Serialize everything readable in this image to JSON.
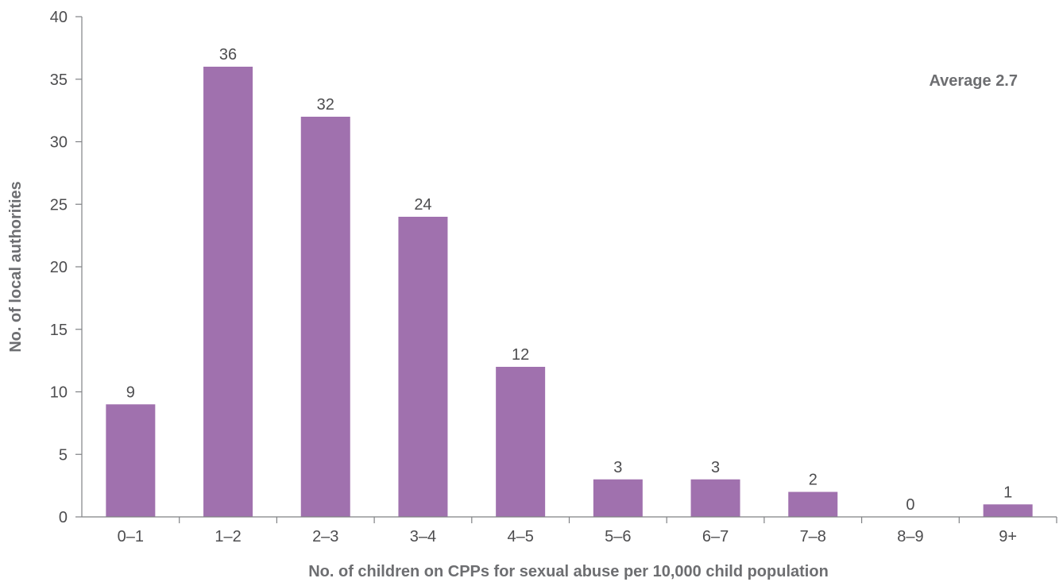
{
  "chart_data": {
    "type": "bar",
    "categories": [
      "0–1",
      "1–2",
      "2–3",
      "3–4",
      "4–5",
      "5–6",
      "6–7",
      "7–8",
      "8–9",
      "9+"
    ],
    "values": [
      9,
      36,
      32,
      24,
      12,
      3,
      3,
      2,
      0,
      1
    ],
    "data_labels": [
      "9",
      "36",
      "32",
      "24",
      "12",
      "3",
      "3",
      "2",
      "0",
      "1"
    ],
    "xlabel": "No. of children on CPPs for sexual abuse per 10,000 child population",
    "ylabel": "No. of local authorities",
    "ylim": [
      0,
      40
    ],
    "yticks": [
      "0",
      "5",
      "10",
      "15",
      "20",
      "25",
      "30",
      "35",
      "40"
    ],
    "annotation": "Average 2.7",
    "grid": false,
    "legend": "none",
    "colors": {
      "bar": "#a071ae",
      "axis": "#6d6e71",
      "text": "#4d4d4f"
    }
  }
}
